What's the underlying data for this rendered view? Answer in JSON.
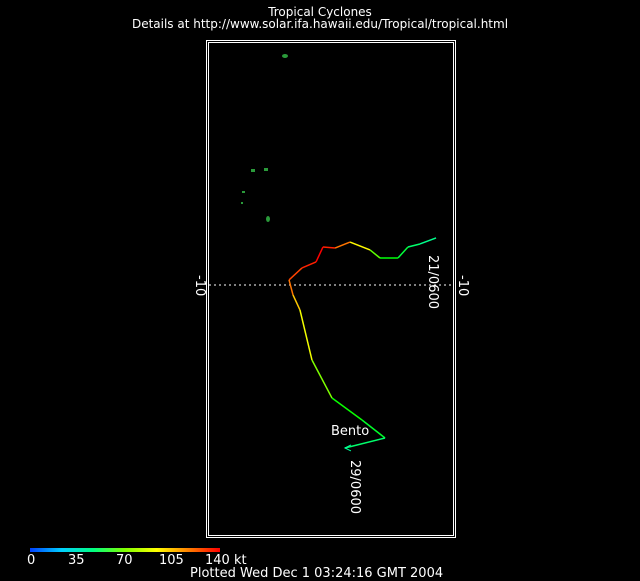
{
  "header": {
    "title": "Tropical Cyclones",
    "details": "Details at http://www.solar.ifa.hawaii.edu/Tropical/tropical.html"
  },
  "axis": {
    "lat_label_left": "-10",
    "lat_label_right": "-10"
  },
  "storm": {
    "name": "Bento",
    "start_label": "21/0600",
    "end_label": "29/0600"
  },
  "legend": {
    "ticks": [
      "0",
      "35",
      "70",
      "105",
      "140 kt"
    ]
  },
  "footer": {
    "plotted": "Plotted Wed Dec 1 03:24:16 GMT 2004"
  },
  "chart_data": {
    "type": "line",
    "title": "Tropical Cyclones",
    "series": [
      {
        "name": "Bento",
        "unit_intensity": "kt",
        "points": [
          [
            112.17,
            -6.08,
            40
          ],
          [
            110.83,
            -6.58,
            45
          ],
          [
            109.83,
            -6.83,
            50
          ],
          [
            109.0,
            -7.75,
            60
          ],
          [
            107.5,
            -7.75,
            65
          ],
          [
            106.67,
            -7.08,
            90
          ],
          [
            105.0,
            -6.42,
            115
          ],
          [
            103.75,
            -6.92,
            130
          ],
          [
            102.75,
            -6.83,
            140
          ],
          [
            102.17,
            -8.08,
            140
          ],
          [
            101.0,
            -8.58,
            130
          ],
          [
            99.92,
            -9.58,
            130
          ],
          [
            100.25,
            -10.83,
            115
          ],
          [
            100.83,
            -12.08,
            105
          ],
          [
            101.83,
            -16.25,
            95
          ],
          [
            103.5,
            -19.42,
            70
          ],
          [
            106.0,
            -21.25,
            60
          ],
          [
            107.92,
            -22.75,
            55
          ],
          [
            104.58,
            -23.58,
            40
          ]
        ]
      }
    ],
    "point_format": [
      "lon",
      "lat",
      "intensity_kt"
    ],
    "colorscale_range": [
      0,
      140
    ]
  }
}
